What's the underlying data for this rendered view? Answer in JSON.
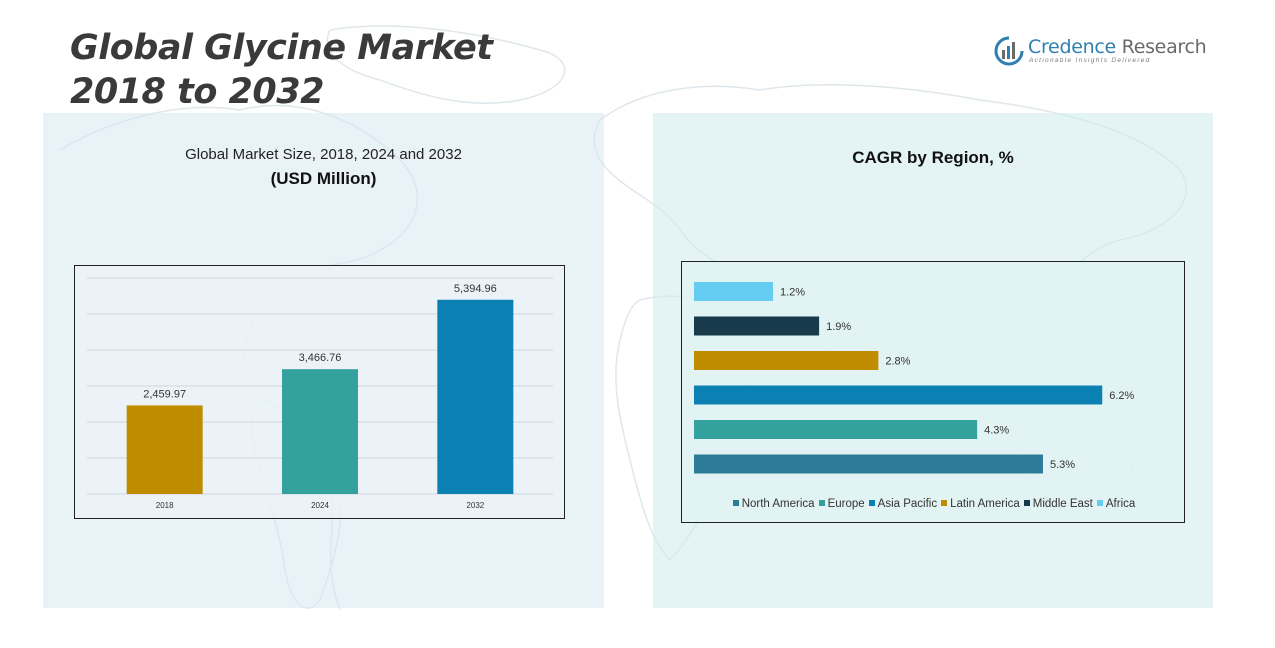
{
  "header": {
    "title_line1": "Global Glycine Market",
    "title_line2": "2018 to 2032"
  },
  "logo": {
    "name_part1": "Credence",
    "name_part2": "Research",
    "tagline": "Actionable Insights Delivered"
  },
  "colors": {
    "north_america": "#2e7b99",
    "europe": "#33a19e",
    "asia_pacific": "#0a80b3",
    "latin_america": "#bf8c00",
    "middle_east": "#173b4a",
    "africa": "#66cdf2"
  },
  "chart_data": [
    {
      "type": "bar",
      "title": "Global Market Size, 2018, 2024 and 2032",
      "subtitle": "(USD Million)",
      "categories": [
        "2018",
        "2024",
        "2032"
      ],
      "values": [
        2459.97,
        3466.76,
        5394.96
      ],
      "value_labels": [
        "2,459.97",
        "3,466.76",
        "5,394.96"
      ],
      "bar_colors": [
        "#bf8c00",
        "#33a19e",
        "#0a80b3"
      ],
      "ylim": [
        0,
        6000
      ],
      "grid": true
    },
    {
      "type": "bar",
      "orientation": "horizontal",
      "title": "CAGR by Region, %",
      "categories": [
        "Africa",
        "Middle East",
        "Latin America",
        "Asia Pacific",
        "Europe",
        "North America"
      ],
      "values": [
        1.2,
        1.9,
        2.8,
        6.2,
        4.3,
        5.3
      ],
      "value_labels": [
        "1.2%",
        "1.9%",
        "2.8%",
        "6.2%",
        "4.3%",
        "5.3%"
      ],
      "bar_colors": [
        "#66cdf2",
        "#173b4a",
        "#bf8c00",
        "#0a80b3",
        "#33a19e",
        "#2e7b99"
      ],
      "xlim": [
        0,
        6.5
      ],
      "legend": [
        "North America",
        "Europe",
        "Asia Pacific",
        "Latin America",
        "Middle East",
        "Africa"
      ],
      "legend_colors": [
        "#2e7b99",
        "#33a19e",
        "#0a80b3",
        "#bf8c00",
        "#173b4a",
        "#66cdf2"
      ],
      "legend_position": "bottom"
    }
  ]
}
